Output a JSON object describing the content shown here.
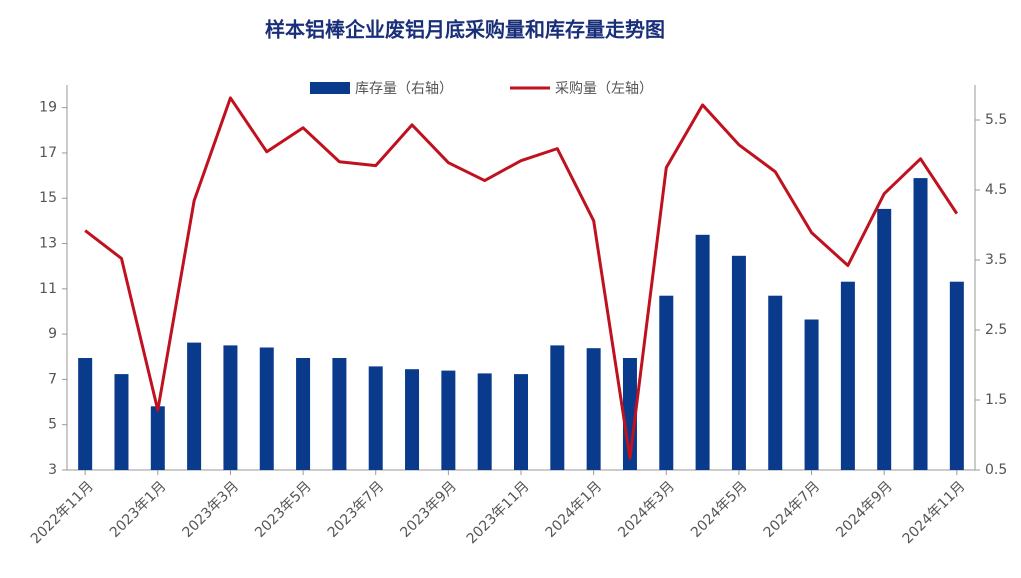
{
  "chart_data": {
    "type": "bar-line",
    "title": "样本铝棒企业废铝月底采购量和库存量走势图",
    "categories": [
      "2022年11月",
      null,
      "2023年1月",
      null,
      "2023年3月",
      null,
      "2023年5月",
      null,
      "2023年7月",
      null,
      "2023年9月",
      null,
      "2023年11月",
      null,
      "2024年1月",
      null,
      "2024年3月",
      null,
      "2024年5月",
      null,
      "2024年7月",
      null,
      "2024年9月",
      null,
      "2024年11月"
    ],
    "series": [
      {
        "name": "库存量（右轴）",
        "type": "bar",
        "axis": "y2",
        "color": "#0a3a8c",
        "values": [
          2.1,
          1.87,
          1.41,
          2.32,
          2.28,
          2.25,
          2.1,
          2.1,
          1.98,
          1.94,
          1.92,
          1.88,
          1.87,
          2.28,
          2.24,
          2.1,
          2.99,
          3.86,
          3.56,
          2.99,
          2.65,
          3.19,
          4.23,
          4.67,
          3.19
        ]
      },
      {
        "name": "采购量（左轴）",
        "type": "line",
        "color": "#c0111f",
        "values": [
          13.57,
          12.34,
          5.64,
          14.89,
          19.43,
          17.05,
          18.11,
          16.61,
          16.44,
          18.24,
          16.57,
          15.78,
          16.66,
          17.19,
          14.01,
          3.53,
          16.35,
          19.12,
          17.36,
          16.17,
          13.48,
          12.03,
          15.2,
          16.74,
          14.32
        ]
      }
    ],
    "ylim": [
      3,
      20
    ],
    "yticks": [
      3,
      5,
      7,
      9,
      11,
      13,
      15,
      17,
      19
    ],
    "y2lim": [
      0.5,
      6
    ],
    "y2ticks": [
      0.5,
      1.5,
      2.5,
      3.5,
      4.5,
      5.5
    ],
    "legend": "top",
    "grid": false
  }
}
